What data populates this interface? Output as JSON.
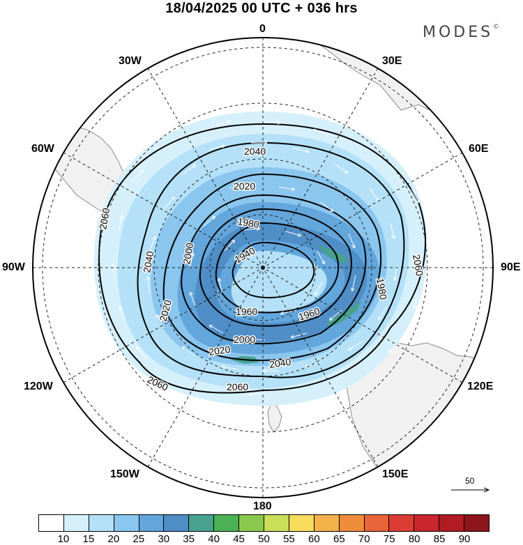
{
  "title": "18/04/2025  00 UTC  + 036 hrs",
  "brand": "MODES",
  "brand_mark": "©",
  "map": {
    "projection": "south-polar-stereographic",
    "longitude_labels": {
      "top": "0",
      "top_right": "30E",
      "right_upper": "60E",
      "right": "90E",
      "right_lower": "120E",
      "bottom_right": "150E",
      "bottom": "180",
      "bottom_left": "150W",
      "left_lower": "120W",
      "left": "90W",
      "left_upper": "60W",
      "top_left": "30W"
    },
    "contour_labels": [
      "2060",
      "2040",
      "2020",
      "2000",
      "1980",
      "1960",
      "1940",
      "2040",
      "2020",
      "2000",
      "1960",
      "1980",
      "2000",
      "2020",
      "2040",
      "2060",
      "2060",
      "2060",
      "2040",
      "2060"
    ],
    "colors": {
      "land": "#f1f1f1",
      "ocean": "#ffffff",
      "coast": "#7a7a7a",
      "contour": "#000000",
      "grid": "#222222",
      "wind_arrow": "#ffffff"
    }
  },
  "reference_vector": {
    "value": "50"
  },
  "colorbar": {
    "ticks": [
      "10",
      "15",
      "20",
      "25",
      "30",
      "35",
      "40",
      "45",
      "50",
      "55",
      "60",
      "65",
      "70",
      "75",
      "80",
      "85",
      "90"
    ],
    "colors": [
      "#ffffff",
      "#d6f0fb",
      "#b4e1f7",
      "#8ac6ee",
      "#62a6dc",
      "#4f8ec7",
      "#48a28e",
      "#4bb154",
      "#8ac94d",
      "#c9df5a",
      "#f7dc5e",
      "#f4b14a",
      "#ef8c3a",
      "#e9643a",
      "#dd3c35",
      "#c8262c",
      "#b11b22",
      "#8e151b"
    ]
  }
}
